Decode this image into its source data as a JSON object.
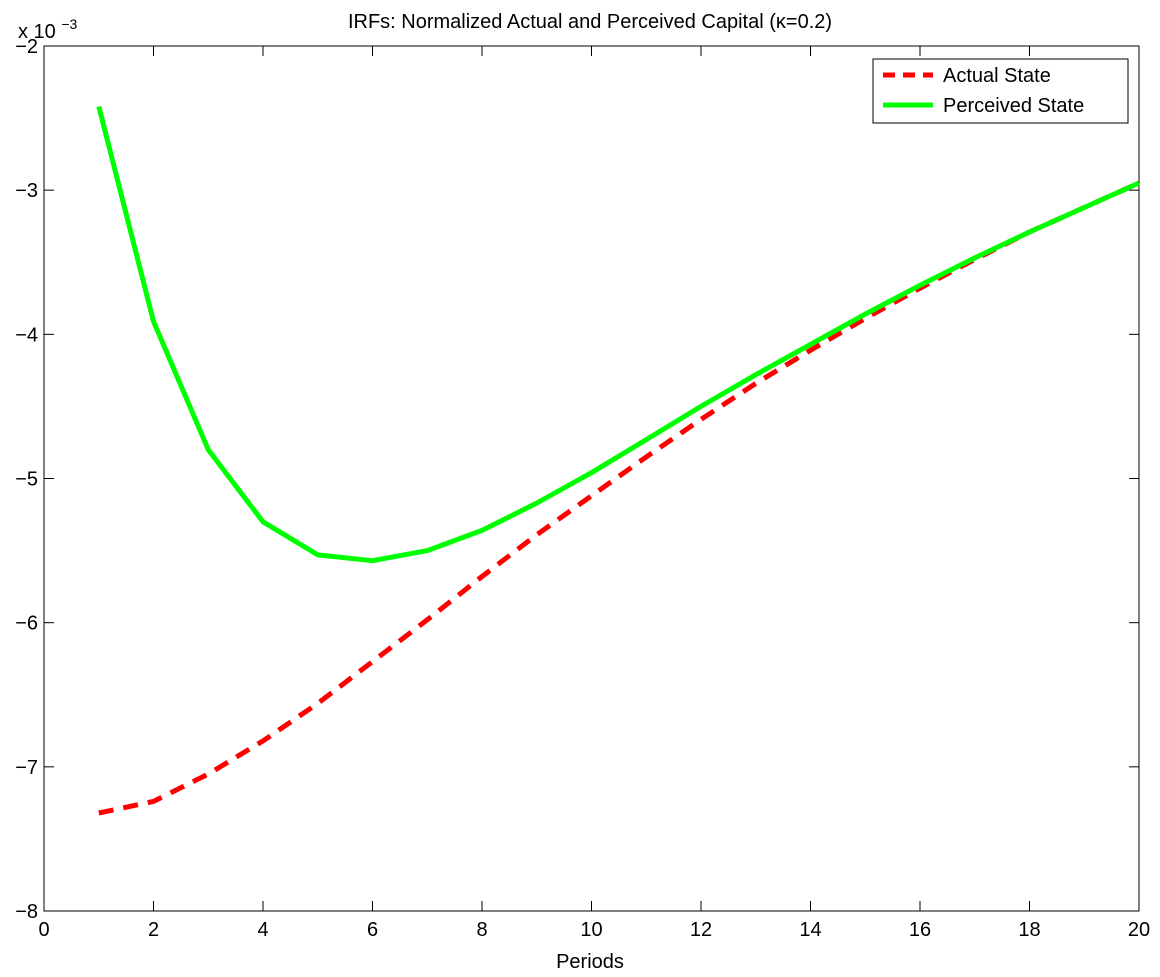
{
  "chart_data": {
    "type": "line",
    "title": "IRFs: Normalized Actual and Perceived Capital (κ=0.2)",
    "xlabel": "Periods",
    "ylabel": "",
    "y_multiplier_base": "x 10",
    "y_multiplier_exponent": "−3",
    "xlim": [
      0,
      20
    ],
    "ylim": [
      -8,
      -2
    ],
    "x_ticks": [
      0,
      2,
      4,
      6,
      8,
      10,
      12,
      14,
      16,
      18,
      20
    ],
    "y_ticks": [
      -8,
      -7,
      -6,
      -5,
      -4,
      -3,
      -2
    ],
    "x_tick_labels": [
      "0",
      "2",
      "4",
      "6",
      "8",
      "10",
      "12",
      "14",
      "16",
      "18",
      "20"
    ],
    "y_tick_labels": [
      "−8",
      "−7",
      "−6",
      "−5",
      "−4",
      "−3",
      "−2"
    ],
    "grid": false,
    "legend_position": "top-right",
    "x": [
      1,
      2,
      3,
      4,
      5,
      6,
      7,
      8,
      9,
      10,
      11,
      12,
      13,
      14,
      15,
      16,
      17,
      18,
      19,
      20
    ],
    "series": [
      {
        "name": "Actual State",
        "color": "#ff0000",
        "style": "dashed",
        "values": [
          -7.32,
          -7.24,
          -7.05,
          -6.82,
          -6.56,
          -6.27,
          -5.98,
          -5.68,
          -5.39,
          -5.12,
          -4.85,
          -4.59,
          -4.34,
          -4.11,
          -3.89,
          -3.68,
          -3.48,
          -3.29,
          -3.12,
          -2.95
        ]
      },
      {
        "name": "Perceived State",
        "color": "#00ff00",
        "style": "solid",
        "values": [
          -2.42,
          -3.91,
          -4.8,
          -5.3,
          -5.53,
          -5.57,
          -5.5,
          -5.36,
          -5.17,
          -4.96,
          -4.73,
          -4.5,
          -4.28,
          -4.07,
          -3.86,
          -3.66,
          -3.47,
          -3.29,
          -3.12,
          -2.95
        ]
      }
    ]
  }
}
